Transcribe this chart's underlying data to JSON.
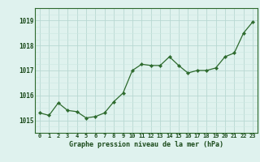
{
  "x": [
    0,
    1,
    2,
    3,
    4,
    5,
    6,
    7,
    8,
    9,
    10,
    11,
    12,
    13,
    14,
    15,
    16,
    17,
    18,
    19,
    20,
    21,
    22,
    23
  ],
  "y": [
    1015.3,
    1015.2,
    1015.7,
    1015.4,
    1015.35,
    1015.1,
    1015.15,
    1015.3,
    1015.75,
    1016.1,
    1017.0,
    1017.25,
    1017.2,
    1017.2,
    1017.55,
    1017.2,
    1016.9,
    1017.0,
    1017.0,
    1017.1,
    1017.55,
    1017.7,
    1018.5,
    1018.95
  ],
  "line_color": "#2d6a2d",
  "marker_color": "#2d6a2d",
  "bg_color": "#dff2ee",
  "grid_color_major": "#b8d8d2",
  "grid_color_minor": "#cce8e3",
  "xlabel": "Graphe pression niveau de la mer (hPa)",
  "xlabel_color": "#1a4a1a",
  "tick_color": "#1a4a1a",
  "spine_color": "#2d6a2d",
  "ylim": [
    1014.5,
    1019.5
  ],
  "yticks": [
    1015,
    1016,
    1017,
    1018,
    1019
  ],
  "xlim": [
    -0.5,
    23.5
  ],
  "xticks": [
    0,
    1,
    2,
    3,
    4,
    5,
    6,
    7,
    8,
    9,
    10,
    11,
    12,
    13,
    14,
    15,
    16,
    17,
    18,
    19,
    20,
    21,
    22,
    23
  ],
  "xtick_labels": [
    "0",
    "1",
    "2",
    "3",
    "4",
    "5",
    "6",
    "7",
    "8",
    "9",
    "10",
    "11",
    "12",
    "13",
    "14",
    "15",
    "16",
    "17",
    "18",
    "19",
    "20",
    "21",
    "22",
    "23"
  ]
}
